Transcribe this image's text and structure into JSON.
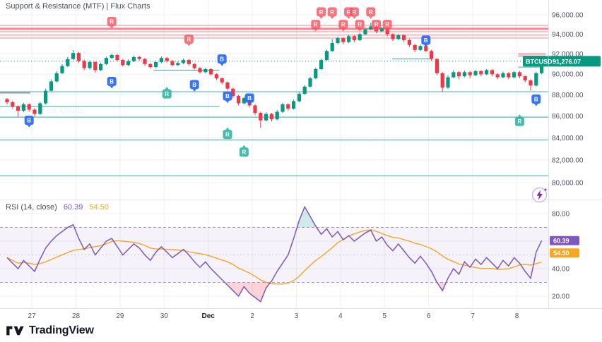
{
  "header": {
    "title": "Support & Resistance (MTF) | Flux Charts"
  },
  "watermark": "Flux Charts",
  "symbol_badge": {
    "symbol": "BTCUSD",
    "price_label": "91,276.07"
  },
  "rsi_legend": {
    "label": "RSI (14, close)",
    "value_label": "60.39",
    "ma_label": "54.50"
  },
  "footer": {
    "brand": "TradingView"
  },
  "colors": {
    "up": "#089981",
    "down": "#f23645",
    "grid": "#eef0f6",
    "axis_text": "#50535e",
    "support": "#1ca597",
    "resistance": "#f23645",
    "rsi": "#7e57c2",
    "rsi_ma": "#f5a623",
    "marker_blue": "#2f6df6",
    "marker_red": "#f7525f",
    "marker_teal": "#3cb9a8",
    "separator": "#e0e3eb",
    "band_fill": "rgba(126,87,194,0.08)",
    "overbought_fill": "rgba(38,166,154,0.22)",
    "oversold_fill": "rgba(242,54,69,0.22)"
  },
  "axis": {
    "price_ticks": [
      {
        "label": "96,000.00",
        "value": 96000
      },
      {
        "label": "94,000.00",
        "value": 94000
      },
      {
        "label": "92,000.00",
        "value": 92000
      },
      {
        "label": "90,000.00",
        "value": 90000
      },
      {
        "label": "88,000.00",
        "value": 88000
      },
      {
        "label": "86,000.00",
        "value": 86000
      },
      {
        "label": "84,000.00",
        "value": 84000
      },
      {
        "label": "82,000.00",
        "value": 82000
      },
      {
        "label": "80,000.00",
        "value": 80000
      }
    ],
    "rsi_ticks": [
      {
        "label": "80.00",
        "value": 80
      },
      {
        "label": "40.00",
        "value": 40
      },
      {
        "label": "20.00",
        "value": 20
      }
    ],
    "rsi_grid": [
      80,
      60,
      40,
      20
    ],
    "time_labels": [
      "27",
      "28",
      "29",
      "30",
      "Dec",
      "2",
      "3",
      "4",
      "5",
      "6",
      "7",
      "8"
    ]
  },
  "chart_data": {
    "type": "candlestick",
    "symbol": "BTCUSD",
    "last_price": 91276.07,
    "rsi_period_values": {
      "rsi": 60.39,
      "rsi_ma": 54.5
    },
    "rsi_band": [
      30,
      70
    ],
    "candles": [
      [
        87600,
        87700,
        87100,
        87300
      ],
      [
        87300,
        87450,
        86700,
        86900
      ],
      [
        86900,
        87000,
        85900,
        86500
      ],
      [
        86500,
        87250,
        86350,
        87100
      ],
      [
        87100,
        87200,
        86400,
        86600
      ],
      [
        86600,
        86750,
        85950,
        86200
      ],
      [
        86200,
        87350,
        86100,
        87200
      ],
      [
        87200,
        88600,
        87100,
        88400
      ],
      [
        88400,
        89500,
        88300,
        89300
      ],
      [
        89300,
        90300,
        89200,
        90100
      ],
      [
        90100,
        91000,
        90000,
        90800
      ],
      [
        90800,
        91700,
        90700,
        91500
      ],
      [
        91500,
        92400,
        91400,
        92100
      ],
      [
        92100,
        92200,
        91100,
        91300
      ],
      [
        91300,
        91450,
        90400,
        90600
      ],
      [
        90600,
        91350,
        90450,
        91200
      ],
      [
        91200,
        91300,
        90150,
        90400
      ],
      [
        90400,
        91150,
        90300,
        91000
      ],
      [
        91000,
        91750,
        90900,
        91600
      ],
      [
        91600,
        92050,
        91500,
        91900
      ],
      [
        91900,
        92000,
        91250,
        91400
      ],
      [
        91400,
        91500,
        90750,
        90900
      ],
      [
        90900,
        91450,
        90800,
        91300
      ],
      [
        91300,
        91850,
        91200,
        91700
      ],
      [
        91700,
        91800,
        91350,
        91500
      ],
      [
        91500,
        91600,
        90850,
        91000
      ],
      [
        91000,
        91100,
        90550,
        90700
      ],
      [
        90700,
        91350,
        90600,
        91200
      ],
      [
        91200,
        91750,
        91100,
        91600
      ],
      [
        91600,
        91700,
        91150,
        91300
      ],
      [
        91300,
        91400,
        90750,
        90900
      ],
      [
        90900,
        91250,
        90800,
        91100
      ],
      [
        91100,
        91550,
        91000,
        91400
      ],
      [
        91400,
        91500,
        90850,
        91000
      ],
      [
        91000,
        91100,
        90450,
        90600
      ],
      [
        90600,
        90700,
        90050,
        90200
      ],
      [
        90200,
        90650,
        90100,
        90500
      ],
      [
        90500,
        90600,
        89850,
        90000
      ],
      [
        90000,
        90100,
        89450,
        89600
      ],
      [
        89600,
        89700,
        89000,
        89200
      ],
      [
        89200,
        89300,
        88400,
        88600
      ],
      [
        88600,
        88700,
        87700,
        87900
      ],
      [
        87900,
        88000,
        87000,
        87200
      ],
      [
        87200,
        87850,
        87100,
        87700
      ],
      [
        87700,
        87800,
        86800,
        87000
      ],
      [
        87000,
        87100,
        86100,
        86300
      ],
      [
        86300,
        86400,
        84900,
        85600
      ],
      [
        85600,
        86350,
        85500,
        86200
      ],
      [
        86200,
        86300,
        85500,
        85700
      ],
      [
        85700,
        86550,
        85600,
        86400
      ],
      [
        86400,
        87250,
        86300,
        87100
      ],
      [
        87100,
        87200,
        86500,
        86700
      ],
      [
        86700,
        87550,
        86600,
        87400
      ],
      [
        87400,
        88250,
        87300,
        88100
      ],
      [
        88100,
        88950,
        88000,
        88800
      ],
      [
        88800,
        89750,
        88700,
        89600
      ],
      [
        89600,
        90650,
        89500,
        90500
      ],
      [
        90500,
        91550,
        90400,
        91400
      ],
      [
        91400,
        92450,
        91300,
        92300
      ],
      [
        92300,
        93500,
        92200,
        93100
      ],
      [
        93100,
        93750,
        93000,
        93600
      ],
      [
        93600,
        93700,
        93000,
        93200
      ],
      [
        93200,
        93950,
        93100,
        93800
      ],
      [
        93800,
        93900,
        93200,
        93400
      ],
      [
        93400,
        94150,
        93300,
        94000
      ],
      [
        94000,
        94650,
        93900,
        94500
      ],
      [
        94500,
        95200,
        94400,
        94800
      ],
      [
        94800,
        94900,
        94100,
        94300
      ],
      [
        94300,
        94750,
        94200,
        94600
      ],
      [
        94600,
        94700,
        93800,
        94000
      ],
      [
        94000,
        94100,
        93300,
        93500
      ],
      [
        93500,
        94050,
        93400,
        93900
      ],
      [
        93900,
        94000,
        93200,
        93400
      ],
      [
        93400,
        93500,
        92700,
        92900
      ],
      [
        92900,
        93000,
        92200,
        92400
      ],
      [
        92400,
        92950,
        92300,
        92800
      ],
      [
        92800,
        92900,
        92200,
        92300
      ],
      [
        92300,
        92400,
        91300,
        91500
      ],
      [
        91500,
        91600,
        89900,
        90100
      ],
      [
        90100,
        90200,
        88300,
        88700
      ],
      [
        88700,
        89900,
        88600,
        89700
      ],
      [
        89700,
        90400,
        89600,
        90200
      ],
      [
        90200,
        90300,
        89500,
        89800
      ],
      [
        89800,
        90350,
        89700,
        90200
      ],
      [
        90200,
        90300,
        89600,
        89900
      ],
      [
        89900,
        90450,
        89800,
        90300
      ],
      [
        90300,
        90400,
        89800,
        90000
      ],
      [
        90000,
        90500,
        89900,
        90400
      ],
      [
        90400,
        90500,
        89800,
        90000
      ],
      [
        90000,
        90100,
        89500,
        89700
      ],
      [
        89700,
        90250,
        89600,
        90100
      ],
      [
        90100,
        90200,
        89500,
        89700
      ],
      [
        89700,
        90300,
        89600,
        90200
      ],
      [
        90200,
        90300,
        89600,
        89800
      ],
      [
        89800,
        89900,
        89200,
        89400
      ],
      [
        89400,
        89500,
        88400,
        88900
      ],
      [
        88900,
        90250,
        88800,
        90100
      ],
      [
        90100,
        91350,
        90000,
        91276
      ]
    ],
    "rsi": [
      48,
      44,
      40,
      46,
      42,
      38,
      47,
      55,
      60,
      64,
      67,
      70,
      72,
      62,
      54,
      58,
      50,
      55,
      60,
      62,
      56,
      50,
      54,
      58,
      55,
      50,
      46,
      52,
      56,
      52,
      48,
      51,
      54,
      50,
      45,
      41,
      45,
      40,
      36,
      32,
      28,
      24,
      20,
      27,
      22,
      19,
      16,
      26,
      31,
      38,
      44,
      50,
      62,
      75,
      85,
      78,
      71,
      65,
      69,
      63,
      67,
      61,
      64,
      60,
      63,
      66,
      68,
      60,
      63,
      57,
      53,
      58,
      53,
      48,
      44,
      49,
      44,
      38,
      30,
      24,
      33,
      40,
      36,
      45,
      41,
      47,
      43,
      48,
      44,
      40,
      46,
      42,
      48,
      44,
      38,
      33,
      52,
      60.39
    ],
    "resistance_lines": [
      {
        "price": 94900,
        "width": 1
      },
      {
        "price": 94550,
        "width": 3
      },
      {
        "price": 94250,
        "width": 1
      },
      {
        "price": 93900,
        "width": 1
      },
      {
        "price": 93600,
        "width": 1
      }
    ],
    "support_lines": [
      88300,
      85900,
      83800,
      80600
    ],
    "partial_lines": [
      {
        "price": 86900,
        "from": 0.0,
        "to": 0.4,
        "color": "teal"
      },
      {
        "price": 90400,
        "from": 0.28,
        "to": 0.4,
        "color": "teal"
      },
      {
        "price": 91500,
        "from": 0.715,
        "to": 0.785,
        "color": "teal"
      },
      {
        "price": 90700,
        "from": 0.945,
        "to": 0.99,
        "color": "teal"
      },
      {
        "price": 88200,
        "from": 0.0,
        "to": 0.055,
        "color": "gray"
      },
      {
        "price": 92000,
        "from": 0.945,
        "to": 0.995,
        "color": "red"
      },
      {
        "price": 91800,
        "from": 0.945,
        "to": 0.995,
        "color": "red"
      }
    ],
    "markers": [
      {
        "label": "B",
        "candle": 4,
        "price": 85600,
        "color": "blue",
        "dir": "down"
      },
      {
        "label": "B",
        "candle": 19,
        "price": 89300,
        "color": "blue",
        "dir": "down"
      },
      {
        "label": "B",
        "candle": 34,
        "price": 89000,
        "color": "blue",
        "dir": "down"
      },
      {
        "label": "B",
        "candle": 39,
        "price": 91500,
        "color": "blue",
        "dir": "down"
      },
      {
        "label": "B",
        "candle": 40,
        "price": 87900,
        "color": "blue",
        "dir": "down"
      },
      {
        "label": "B",
        "candle": 44,
        "price": 87700,
        "color": "blue",
        "dir": "down"
      },
      {
        "label": "B",
        "candle": 76,
        "price": 93400,
        "color": "blue",
        "dir": "down"
      },
      {
        "label": "B",
        "candle": 96,
        "price": 87600,
        "color": "blue",
        "dir": "down"
      },
      {
        "label": "R",
        "candle": 19,
        "price": 95300,
        "color": "red",
        "dir": "down"
      },
      {
        "label": "R",
        "candle": 33,
        "price": 93500,
        "color": "red",
        "dir": "down"
      },
      {
        "label": "R",
        "candle": 56,
        "price": 95000,
        "color": "red",
        "dir": "down"
      },
      {
        "label": "R",
        "candle": 57,
        "price": 96300,
        "color": "red",
        "dir": "down"
      },
      {
        "label": "R",
        "candle": 59,
        "price": 96300,
        "color": "red",
        "dir": "down"
      },
      {
        "label": "R",
        "candle": 61,
        "price": 95000,
        "color": "red",
        "dir": "down"
      },
      {
        "label": "R",
        "candle": 62,
        "price": 96300,
        "color": "red",
        "dir": "down"
      },
      {
        "label": "R",
        "candle": 63,
        "price": 96300,
        "color": "red",
        "dir": "down"
      },
      {
        "label": "R",
        "candle": 64,
        "price": 95000,
        "color": "red",
        "dir": "down"
      },
      {
        "label": "R",
        "candle": 66,
        "price": 96300,
        "color": "red",
        "dir": "down"
      },
      {
        "label": "R",
        "candle": 67,
        "price": 95000,
        "color": "red",
        "dir": "down"
      },
      {
        "label": "R",
        "candle": 69,
        "price": 95000,
        "color": "red",
        "dir": "down"
      },
      {
        "label": "R",
        "candle": 29,
        "price": 88100,
        "color": "teal",
        "dir": "up"
      },
      {
        "label": "R",
        "candle": 40,
        "price": 84300,
        "color": "teal",
        "dir": "up"
      },
      {
        "label": "R",
        "candle": 43,
        "price": 82700,
        "color": "teal",
        "dir": "up"
      },
      {
        "label": "R",
        "candle": 93,
        "price": 85500,
        "color": "teal",
        "dir": "up"
      }
    ]
  }
}
